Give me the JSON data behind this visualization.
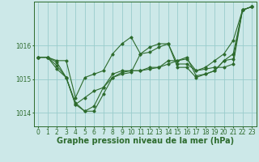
{
  "background_color": "#cce8e8",
  "grid_color": "#99cccc",
  "line_color": "#2d6b2d",
  "xlabel": "Graphe pression niveau de la mer (hPa)",
  "xlabel_fontsize": 7,
  "tick_fontsize": 5.5,
  "ylim": [
    1013.6,
    1017.3
  ],
  "xlim": [
    -0.5,
    23.5
  ],
  "yticks": [
    1014,
    1015,
    1016
  ],
  "xticks": [
    0,
    1,
    2,
    3,
    4,
    5,
    6,
    7,
    8,
    9,
    10,
    11,
    12,
    13,
    14,
    15,
    16,
    17,
    18,
    19,
    20,
    21,
    22,
    23
  ],
  "series": [
    [
      1015.65,
      1015.65,
      1015.55,
      1015.55,
      1014.45,
      1015.05,
      1015.15,
      1015.25,
      1015.75,
      1016.05,
      1016.25,
      1015.75,
      1015.95,
      1016.05,
      1016.05,
      1015.45,
      1015.45,
      1015.25,
      1015.35,
      1015.55,
      1015.75,
      1016.15,
      1017.05,
      1017.15
    ],
    [
      1015.65,
      1015.65,
      1015.5,
      1015.05,
      1014.3,
      1014.05,
      1014.2,
      1014.75,
      1015.15,
      1015.25,
      1015.25,
      1015.25,
      1015.35,
      1015.35,
      1015.45,
      1015.55,
      1015.65,
      1015.1,
      1015.15,
      1015.25,
      1015.55,
      1015.75,
      1017.05,
      1017.15
    ],
    [
      1015.65,
      1015.65,
      1015.4,
      1015.05,
      1014.25,
      1014.05,
      1014.05,
      1014.55,
      1015.05,
      1015.15,
      1015.2,
      1015.75,
      1015.8,
      1015.95,
      1016.05,
      1015.35,
      1015.35,
      1015.05,
      1015.15,
      1015.25,
      1015.55,
      1015.6,
      1017.05,
      1017.15
    ],
    [
      1015.65,
      1015.65,
      1015.3,
      1015.05,
      1014.25,
      1014.45,
      1014.65,
      1014.75,
      1015.05,
      1015.2,
      1015.25,
      1015.25,
      1015.3,
      1015.35,
      1015.55,
      1015.55,
      1015.6,
      1015.25,
      1015.3,
      1015.35,
      1015.35,
      1015.45,
      1017.05,
      1017.15
    ]
  ]
}
